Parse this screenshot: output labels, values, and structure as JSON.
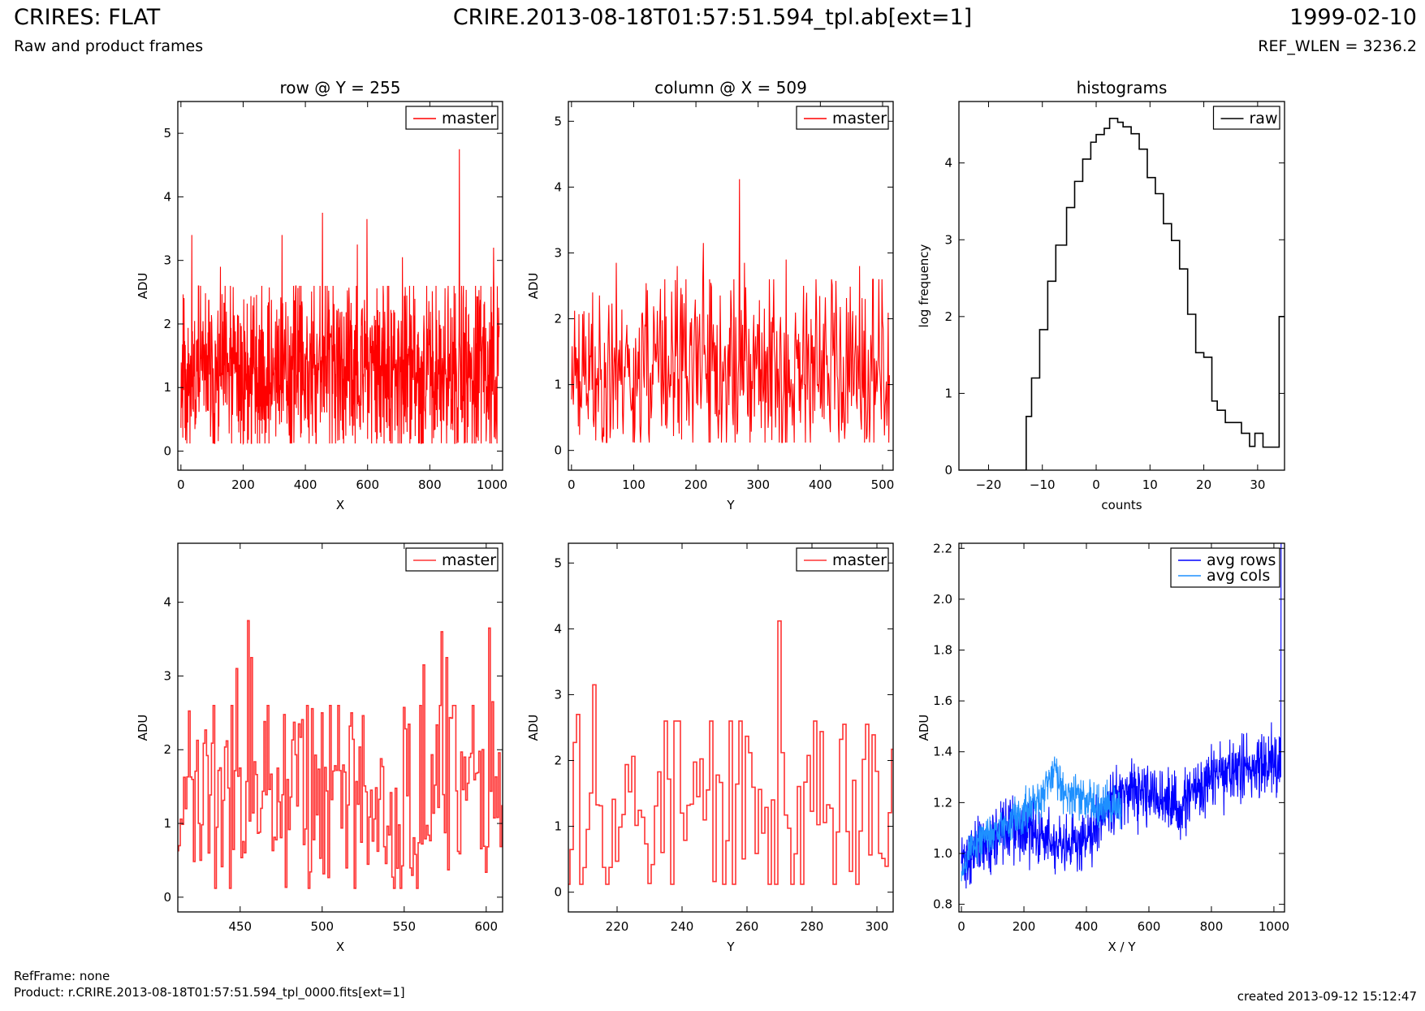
{
  "header": {
    "title_left": "CRIRES: FLAT",
    "subtitle_left": "Raw and product frames",
    "title_center": "CRIRE.2013-08-18T01:57:51.594_tpl.ab[ext=1]",
    "title_right": "1999-02-10",
    "subtitle_right": "REF_WLEN = 3236.2"
  },
  "footer": {
    "ref_frame": "RefFrame: none",
    "product": "Product: r.CRIRE.2013-08-18T01:57:51.594_tpl_0000.fits[ext=1]",
    "created": "created 2013-09-12 15:12:47"
  },
  "colors": {
    "red": "#ff0000",
    "red_light": "#ff3333",
    "blue": "#0000ff",
    "light_blue": "#1e90ff",
    "black": "#000000"
  },
  "chart_data": [
    {
      "id": "row-full",
      "type": "line",
      "title": "row @ Y = 255",
      "xlabel": "X",
      "ylabel": "ADU",
      "xlim": [
        -10,
        1034
      ],
      "ylim": [
        -0.3,
        5.5
      ],
      "xticks": [
        0,
        200,
        400,
        600,
        800,
        1000
      ],
      "yticks": [
        0,
        1,
        2,
        3,
        4,
        5
      ],
      "legend": "top-right",
      "series": [
        {
          "name": "master",
          "color": "#ff0000",
          "x_range": [
            0,
            1023
          ],
          "noise": {
            "baseline": 1.2,
            "amplitude": 0.55,
            "seed": 11
          },
          "peaks": [
            [
              35,
              3.4
            ],
            [
              127,
              2.9
            ],
            [
              325,
              3.4
            ],
            [
              455,
              3.75
            ],
            [
              502,
              2.2
            ],
            [
              567,
              3.25
            ],
            [
              598,
              3.65
            ],
            [
              650,
              2.6
            ],
            [
              712,
              3.05
            ],
            [
              895,
              4.75
            ],
            [
              1005,
              3.2
            ]
          ]
        }
      ]
    },
    {
      "id": "col-full",
      "type": "line",
      "title": "column @ X = 509",
      "xlabel": "Y",
      "ylabel": "ADU",
      "xlim": [
        -5,
        517
      ],
      "ylim": [
        -0.3,
        5.3
      ],
      "xticks": [
        0,
        100,
        200,
        300,
        400,
        500
      ],
      "yticks": [
        0,
        1,
        2,
        3,
        4,
        5
      ],
      "legend": "top-right",
      "series": [
        {
          "name": "master",
          "color": "#ff0000",
          "x_range": [
            0,
            511
          ],
          "noise": {
            "baseline": 1.2,
            "amplitude": 0.55,
            "seed": 23
          },
          "peaks": [
            [
              72,
              2.85
            ],
            [
              170,
              2.8
            ],
            [
              212,
              3.15
            ],
            [
              270,
              4.12
            ],
            [
              278,
              2.85
            ],
            [
              345,
              2.9
            ],
            [
              373,
              2.5
            ],
            [
              463,
              2.8
            ],
            [
              494,
              2.6
            ]
          ]
        }
      ]
    },
    {
      "id": "histogram",
      "type": "step",
      "title": "histograms",
      "xlabel": "counts",
      "ylabel": "log frequency",
      "xlim": [
        -25.5,
        35
      ],
      "ylim": [
        0,
        4.8
      ],
      "xticks": [
        -20,
        -10,
        0,
        10,
        20,
        30
      ],
      "yticks": [
        0,
        1,
        2,
        3,
        4
      ],
      "legend": "top-right",
      "series": [
        {
          "name": "raw",
          "color": "#000000",
          "bin_edges": [
            -25.5,
            -13,
            -12,
            -10.5,
            -9,
            -7.5,
            -5.5,
            -4,
            -2.5,
            -1,
            0,
            1.5,
            2.5,
            4,
            5,
            6.5,
            8,
            9.5,
            11,
            12.5,
            14,
            15.5,
            17,
            18.5,
            20,
            21.5,
            22.5,
            24,
            25.5,
            27,
            28.5,
            29.5,
            31,
            32.5,
            34,
            35
          ],
          "values": [
            0,
            0.7,
            1.2,
            1.83,
            2.46,
            2.93,
            3.42,
            3.76,
            4.05,
            4.27,
            4.37,
            4.45,
            4.58,
            4.53,
            4.47,
            4.38,
            4.18,
            3.81,
            3.6,
            3.21,
            2.99,
            2.62,
            2.03,
            1.53,
            1.47,
            0.9,
            0.78,
            0.62,
            0.62,
            0.48,
            0.31,
            0.48,
            0.3,
            0.3,
            2.0
          ]
        }
      ]
    },
    {
      "id": "row-zoom",
      "type": "step",
      "xlabel": "X",
      "ylabel": "ADU",
      "xlim": [
        412,
        610
      ],
      "ylim": [
        -0.2,
        4.8
      ],
      "xticks": [
        450,
        500,
        550,
        600
      ],
      "yticks": [
        0,
        1,
        2,
        3,
        4
      ],
      "legend": "top-right",
      "series": [
        {
          "name": "master",
          "color": "#ff3333",
          "x_range": [
            412,
            610
          ],
          "noise": {
            "baseline": 1.25,
            "amplitude": 0.6,
            "seed": 37
          },
          "peaks": [
            [
              434,
              2.6
            ],
            [
              448,
              3.1
            ],
            [
              455,
              3.75
            ],
            [
              457,
              3.25
            ],
            [
              486,
              2.35
            ],
            [
              500,
              2.5
            ],
            [
              518,
              2.5
            ],
            [
              562,
              3.15
            ],
            [
              573,
              3.6
            ],
            [
              576,
              3.25
            ],
            [
              602,
              3.65
            ],
            [
              604,
              2.65
            ]
          ]
        }
      ]
    },
    {
      "id": "col-zoom",
      "type": "step",
      "xlabel": "Y",
      "ylabel": "ADU",
      "xlim": [
        205,
        305
      ],
      "ylim": [
        -0.3,
        5.3
      ],
      "xticks": [
        220,
        240,
        260,
        280,
        300
      ],
      "yticks": [
        0,
        1,
        2,
        3,
        4,
        5
      ],
      "legend": "top-right",
      "series": [
        {
          "name": "master",
          "color": "#ff3333",
          "x_range": [
            205,
            305
          ],
          "noise": {
            "baseline": 1.2,
            "amplitude": 0.65,
            "seed": 53
          },
          "peaks": [
            [
              208,
              2.7
            ],
            [
              213,
              3.15
            ],
            [
              238,
              2.6
            ],
            [
              270,
              4.12
            ],
            [
              290,
              2.55
            ],
            [
              297,
              2.55
            ]
          ]
        }
      ]
    },
    {
      "id": "averages",
      "type": "line",
      "xlabel": "X / Y",
      "ylabel": "ADU",
      "xlim": [
        -8,
        1034
      ],
      "ylim": [
        0.77,
        2.22
      ],
      "xticks": [
        0,
        200,
        400,
        600,
        800,
        1000
      ],
      "yticks": [
        0.8,
        1.0,
        1.2,
        1.4,
        1.6,
        1.8,
        2.0,
        2.2
      ],
      "ytick_labels": [
        "0.8",
        "1.0",
        "1.2",
        "1.4",
        "1.6",
        "1.8",
        "2.0",
        "2.2"
      ],
      "legend": "top-right",
      "series": [
        {
          "name": "avg rows",
          "color": "#0000ff",
          "trend": [
            [
              0,
              0.97
            ],
            [
              150,
              1.1
            ],
            [
              250,
              1.08
            ],
            [
              330,
              1.0
            ],
            [
              420,
              1.1
            ],
            [
              480,
              1.22
            ],
            [
              600,
              1.23
            ],
            [
              700,
              1.18
            ],
            [
              800,
              1.3
            ],
            [
              900,
              1.33
            ],
            [
              1023,
              1.38
            ]
          ],
          "noise_amplitude": 0.06,
          "seed": 71,
          "x_range": [
            0,
            1023
          ],
          "end_spike": 2.22
        },
        {
          "name": "avg cols",
          "color": "#1e90ff",
          "trend": [
            [
              0,
              0.9
            ],
            [
              30,
              1.03
            ],
            [
              150,
              1.12
            ],
            [
              250,
              1.2
            ],
            [
              300,
              1.34
            ],
            [
              330,
              1.24
            ],
            [
              420,
              1.2
            ],
            [
              511,
              1.18
            ]
          ],
          "noise_amplitude": 0.04,
          "seed": 89,
          "x_range": [
            0,
            511
          ]
        }
      ]
    }
  ]
}
